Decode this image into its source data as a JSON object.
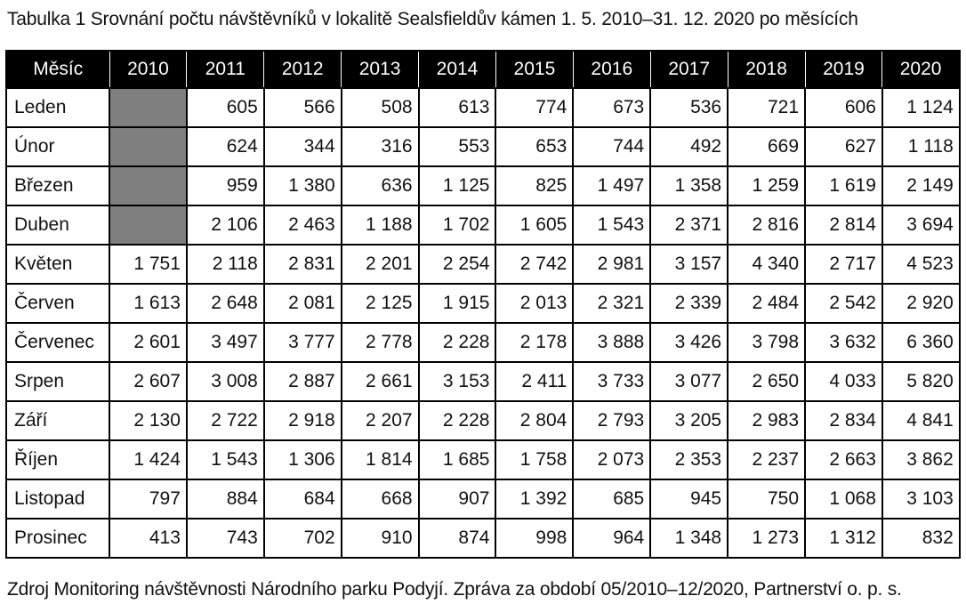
{
  "caption": "Tabulka 1 Srovnání počtu návštěvníků v lokalitě Sealsfieldův kámen 1. 5. 2010–31. 12. 2020 po měsících",
  "source": "Zdroj Monitoring návštěvnosti Národního parku Podyjí. Zpráva za období 05/2010–12/2020, Partnerství o. p. s.",
  "table": {
    "header": [
      "Měsíc",
      "2010",
      "2011",
      "2012",
      "2013",
      "2014",
      "2015",
      "2016",
      "2017",
      "2018",
      "2019",
      "2020"
    ],
    "missing_fill": "#7f7f7f",
    "rows": [
      {
        "month": "Leden",
        "values": [
          "",
          "605",
          "566",
          "508",
          "613",
          "774",
          "673",
          "536",
          "721",
          "606",
          "1 124"
        ]
      },
      {
        "month": "Únor",
        "values": [
          "",
          "624",
          "344",
          "316",
          "553",
          "653",
          "744",
          "492",
          "669",
          "627",
          "1 118"
        ]
      },
      {
        "month": "Březen",
        "values": [
          "",
          "959",
          "1 380",
          "636",
          "1 125",
          "825",
          "1 497",
          "1 358",
          "1 259",
          "1 619",
          "2 149"
        ]
      },
      {
        "month": "Duben",
        "values": [
          "",
          "2 106",
          "2 463",
          "1 188",
          "1 702",
          "1 605",
          "1 543",
          "2 371",
          "2 816",
          "2 814",
          "3 694"
        ]
      },
      {
        "month": "Květen",
        "values": [
          "1 751",
          "2 118",
          "2 831",
          "2 201",
          "2 254",
          "2 742",
          "2 981",
          "3 157",
          "4 340",
          "2 717",
          "4 523"
        ]
      },
      {
        "month": "Červen",
        "values": [
          "1 613",
          "2 648",
          "2 081",
          "2 125",
          "1 915",
          "2 013",
          "2 321",
          "2 339",
          "2 484",
          "2 542",
          "2 920"
        ]
      },
      {
        "month": "Červenec",
        "values": [
          "2 601",
          "3 497",
          "3 777",
          "2 778",
          "2 228",
          "2 178",
          "3 888",
          "3 426",
          "3 798",
          "3 632",
          "6 360"
        ]
      },
      {
        "month": "Srpen",
        "values": [
          "2 607",
          "3 008",
          "2 887",
          "2 661",
          "3 153",
          "2 411",
          "3 733",
          "3 077",
          "2 650",
          "4 033",
          "5 820"
        ]
      },
      {
        "month": "Září",
        "values": [
          "2 130",
          "2 722",
          "2 918",
          "2 207",
          "2 228",
          "2 804",
          "2 793",
          "3 205",
          "2 983",
          "2 834",
          "4 841"
        ]
      },
      {
        "month": "Říjen",
        "values": [
          "1 424",
          "1 543",
          "1 306",
          "1 814",
          "1 685",
          "1 758",
          "2 073",
          "2 353",
          "2 237",
          "2 663",
          "3 862"
        ]
      },
      {
        "month": "Listopad",
        "values": [
          "797",
          "884",
          "684",
          "668",
          "907",
          "1 392",
          "685",
          "945",
          "750",
          "1 068",
          "3 103"
        ]
      },
      {
        "month": "Prosinec",
        "values": [
          "413",
          "743",
          "702",
          "910",
          "874",
          "998",
          "964",
          "1 348",
          "1 273",
          "1 312",
          "832"
        ]
      }
    ]
  }
}
